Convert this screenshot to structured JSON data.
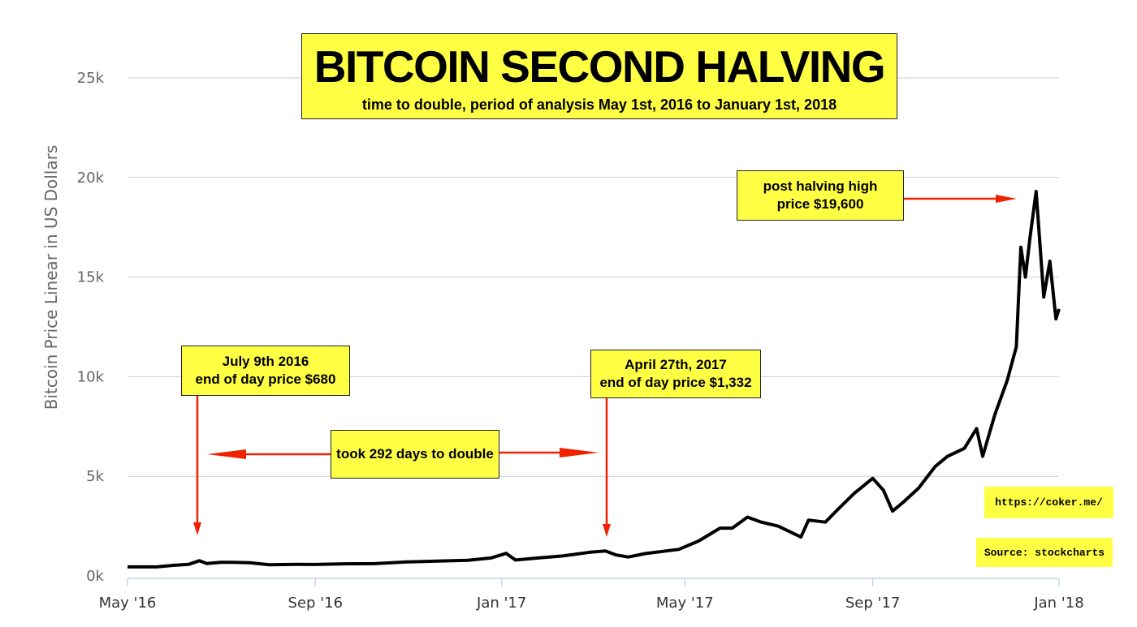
{
  "title": "BITCOIN SECOND HALVING",
  "subtitle": "time to double, period of analysis May 1st, 2016 to January 1st, 2018",
  "annotations": {
    "july": [
      "July 9th 2016",
      "end of day price $680"
    ],
    "april": [
      "April 27th, 2017",
      "end of day price $1,332"
    ],
    "double": "took 292 days to double",
    "high": [
      "post halving high",
      "price $19,600"
    ],
    "url": "https://coker.me/",
    "source": "Source: stockcharts"
  },
  "colors": {
    "annotation_bg": "#ffff44",
    "arrow": "#ee2200",
    "line": "#000000",
    "grid": "#cccccc"
  },
  "chart_data": {
    "type": "line",
    "ylabel": "Bitcoin Price Linear in US Dollars",
    "xlabel": "",
    "ylim": [
      0,
      25000
    ],
    "yticks": [
      {
        "v": 0,
        "label": "0k"
      },
      {
        "v": 5000,
        "label": "5k"
      },
      {
        "v": 10000,
        "label": "10k"
      },
      {
        "v": 15000,
        "label": "15k"
      },
      {
        "v": 20000,
        "label": "20k"
      },
      {
        "v": 25000,
        "label": "25k"
      }
    ],
    "xticks": [
      {
        "date": "2016-05-01",
        "label": "May '16"
      },
      {
        "date": "2016-09-01",
        "label": "Sep '16"
      },
      {
        "date": "2017-01-01",
        "label": "Jan '17"
      },
      {
        "date": "2017-05-01",
        "label": "May '17"
      },
      {
        "date": "2017-09-01",
        "label": "Sep '17"
      },
      {
        "date": "2018-01-01",
        "label": "Jan '18"
      }
    ],
    "series": [
      {
        "name": "",
        "points": [
          [
            "2016-05-01",
            450
          ],
          [
            "2016-05-20",
            450
          ],
          [
            "2016-05-31",
            530
          ],
          [
            "2016-06-10",
            580
          ],
          [
            "2016-06-17",
            760
          ],
          [
            "2016-06-22",
            620
          ],
          [
            "2016-07-01",
            680
          ],
          [
            "2016-07-09",
            680
          ],
          [
            "2016-07-20",
            660
          ],
          [
            "2016-08-02",
            560
          ],
          [
            "2016-08-20",
            580
          ],
          [
            "2016-09-01",
            575
          ],
          [
            "2016-09-20",
            605
          ],
          [
            "2016-10-10",
            615
          ],
          [
            "2016-10-31",
            700
          ],
          [
            "2016-11-20",
            740
          ],
          [
            "2016-12-10",
            780
          ],
          [
            "2016-12-25",
            900
          ],
          [
            "2017-01-04",
            1130
          ],
          [
            "2017-01-10",
            800
          ],
          [
            "2017-01-25",
            900
          ],
          [
            "2017-02-10",
            1000
          ],
          [
            "2017-02-28",
            1190
          ],
          [
            "2017-03-10",
            1250
          ],
          [
            "2017-03-17",
            1050
          ],
          [
            "2017-03-25",
            950
          ],
          [
            "2017-04-05",
            1120
          ],
          [
            "2017-04-27",
            1332
          ],
          [
            "2017-05-10",
            1750
          ],
          [
            "2017-05-24",
            2400
          ],
          [
            "2017-06-01",
            2400
          ],
          [
            "2017-06-11",
            2950
          ],
          [
            "2017-06-20",
            2700
          ],
          [
            "2017-07-01",
            2500
          ],
          [
            "2017-07-16",
            1950
          ],
          [
            "2017-07-21",
            2800
          ],
          [
            "2017-08-01",
            2700
          ],
          [
            "2017-08-10",
            3400
          ],
          [
            "2017-08-20",
            4150
          ],
          [
            "2017-09-01",
            4900
          ],
          [
            "2017-09-08",
            4300
          ],
          [
            "2017-09-14",
            3250
          ],
          [
            "2017-09-21",
            3700
          ],
          [
            "2017-10-01",
            4400
          ],
          [
            "2017-10-12",
            5500
          ],
          [
            "2017-10-20",
            6000
          ],
          [
            "2017-10-31",
            6400
          ],
          [
            "2017-11-08",
            7400
          ],
          [
            "2017-11-12",
            6000
          ],
          [
            "2017-11-20",
            8100
          ],
          [
            "2017-11-28",
            9800
          ],
          [
            "2017-12-04",
            11500
          ],
          [
            "2017-12-07",
            16500
          ],
          [
            "2017-12-10",
            15000
          ],
          [
            "2017-12-13",
            17000
          ],
          [
            "2017-12-17",
            19300
          ],
          [
            "2017-12-22",
            14000
          ],
          [
            "2017-12-26",
            15800
          ],
          [
            "2017-12-30",
            12900
          ],
          [
            "2018-01-01",
            13400
          ]
        ]
      }
    ]
  }
}
